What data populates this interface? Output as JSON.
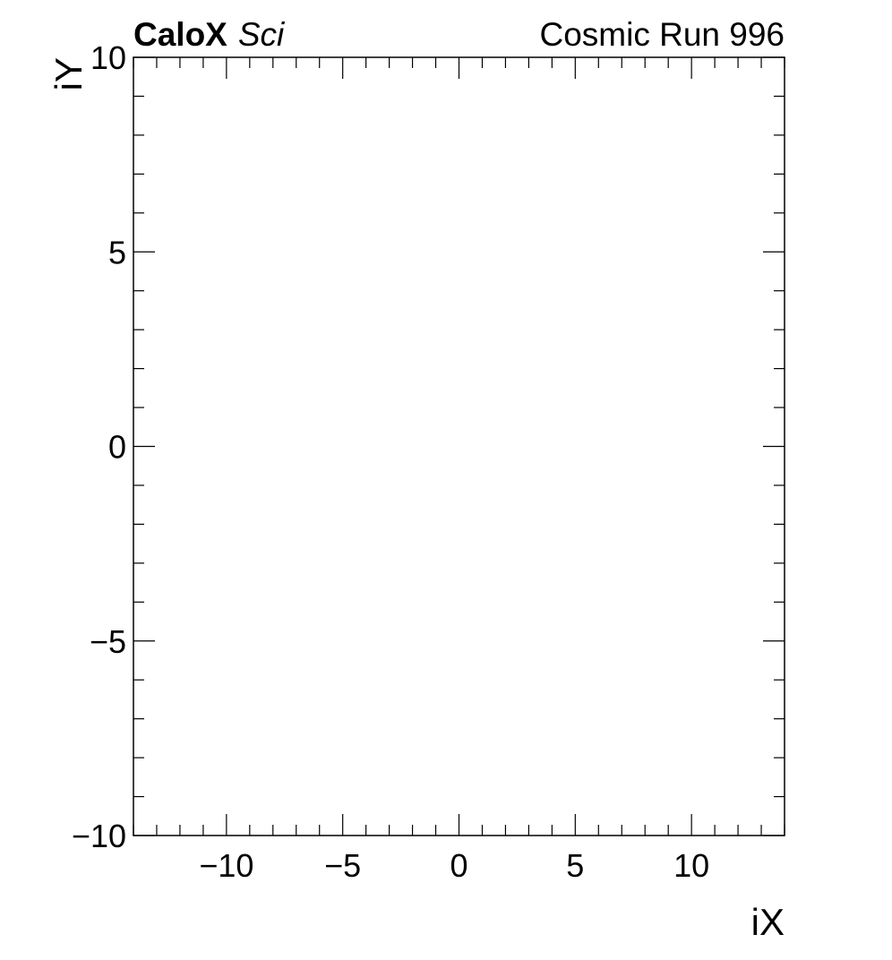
{
  "header": {
    "experiment_bold": "CaloX",
    "experiment_italic": "Sci",
    "run_label": "Cosmic Run 996"
  },
  "chart_data": {
    "type": "heatmap",
    "title": "",
    "xlabel": "iX",
    "ylabel": "iY",
    "xlim": [
      -14,
      14
    ],
    "ylim": [
      -10,
      10
    ],
    "x_major_ticks": [
      -10,
      -5,
      0,
      5,
      10
    ],
    "x_tick_labels": [
      "−10",
      "−5",
      "0",
      "5",
      "10"
    ],
    "x_minor_step": 1,
    "y_major_ticks": [
      -10,
      -5,
      0,
      5,
      10
    ],
    "y_tick_labels": [
      "−10",
      "−5",
      "0",
      "5",
      "10"
    ],
    "y_minor_step": 1,
    "grid": false,
    "values": []
  },
  "colors": {
    "background": "#ffffff",
    "axis": "#000000"
  }
}
